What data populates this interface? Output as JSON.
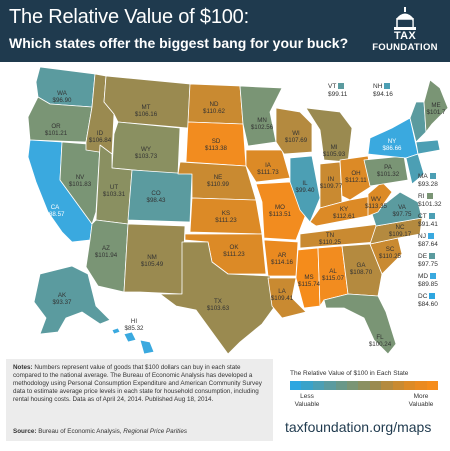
{
  "header": {
    "title": "The Relative Value of $100:",
    "subtitle": "Which states offer the biggest bang for your buck?",
    "logo": {
      "line1": "TAX",
      "line2": "FOUNDATION"
    }
  },
  "colors": {
    "header_bg": "#1f3a4e",
    "less_valuable": "#3aa9df",
    "mid": "#8a8a55",
    "more_valuable": "#f28c1f"
  },
  "states": [
    {
      "abbr": "WA",
      "value": "$96.90"
    },
    {
      "abbr": "OR",
      "value": "$101.21"
    },
    {
      "abbr": "CA",
      "value": "$88.57"
    },
    {
      "abbr": "NV",
      "value": "$101.83"
    },
    {
      "abbr": "ID",
      "value": "$106.84"
    },
    {
      "abbr": "MT",
      "value": "$106.16"
    },
    {
      "abbr": "WY",
      "value": "$103.73"
    },
    {
      "abbr": "UT",
      "value": "$103.31"
    },
    {
      "abbr": "AZ",
      "value": "$101.94"
    },
    {
      "abbr": "CO",
      "value": "$98.43"
    },
    {
      "abbr": "NM",
      "value": "$105.49"
    },
    {
      "abbr": "ND",
      "value": "$110.62"
    },
    {
      "abbr": "SD",
      "value": "$113.38"
    },
    {
      "abbr": "NE",
      "value": "$110.99"
    },
    {
      "abbr": "KS",
      "value": "$111.23"
    },
    {
      "abbr": "OK",
      "value": "$111.23"
    },
    {
      "abbr": "TX",
      "value": "$103.63"
    },
    {
      "abbr": "MN",
      "value": "$102.56"
    },
    {
      "abbr": "IA",
      "value": "$111.73"
    },
    {
      "abbr": "MO",
      "value": "$113.51"
    },
    {
      "abbr": "AR",
      "value": "$114.16"
    },
    {
      "abbr": "LA",
      "value": "$109.41"
    },
    {
      "abbr": "WI",
      "value": "$107.69"
    },
    {
      "abbr": "IL",
      "value": "$99.40"
    },
    {
      "abbr": "MS",
      "value": "$115.74"
    },
    {
      "abbr": "MI",
      "value": "$105.93"
    },
    {
      "abbr": "IN",
      "value": "$109.77"
    },
    {
      "abbr": "OH",
      "value": "$112.11"
    },
    {
      "abbr": "KY",
      "value": "$112.61"
    },
    {
      "abbr": "TN",
      "value": "$110.25"
    },
    {
      "abbr": "AL",
      "value": "$115.07"
    },
    {
      "abbr": "GA",
      "value": "$108.70"
    },
    {
      "abbr": "FL",
      "value": "$100.24"
    },
    {
      "abbr": "SC",
      "value": "$110.25"
    },
    {
      "abbr": "NC",
      "value": "$109.17"
    },
    {
      "abbr": "VA",
      "value": "$97.75"
    },
    {
      "abbr": "WV",
      "value": "$113.35"
    },
    {
      "abbr": "PA",
      "value": "$101.32"
    },
    {
      "abbr": "NY",
      "value": "$86.66"
    },
    {
      "abbr": "ME",
      "value": "$101.7"
    },
    {
      "abbr": "AK",
      "value": "$93.37"
    },
    {
      "abbr": "HI",
      "value": "$85.32"
    }
  ],
  "side_states": [
    {
      "abbr": "VT",
      "value": "$99.11"
    },
    {
      "abbr": "NH",
      "value": "$94.16"
    },
    {
      "abbr": "MA",
      "value": "$93.28"
    },
    {
      "abbr": "RI",
      "value": "$101.32"
    },
    {
      "abbr": "CT",
      "value": "$91.41"
    },
    {
      "abbr": "NJ",
      "value": "$87.64"
    },
    {
      "abbr": "DE",
      "value": "$97.75"
    },
    {
      "abbr": "MD",
      "value": "$89.85"
    },
    {
      "abbr": "DC",
      "value": "$84.60"
    }
  ],
  "notes": {
    "label": "Notes:",
    "text": "Numbers represent value of goods that $100 dollars can buy in each state compared to the national average. The Bureau of Economic Analysis has developed a methodology using Personal Consumption Expenditure and American Community Survey data to estimate average price levels in each state for household consumption, including rental housing costs. Data as of April 24, 2014. Published Aug 18, 2014.",
    "source_label": "Source:",
    "source_text": "Bureau of Economic Analysis,",
    "source_italic": "Regional Price Parities"
  },
  "legend": {
    "title": "The Relative Value of $100 in Each State",
    "less": "Less Valuable",
    "more": "More Valuable",
    "colors": [
      "#2ea6e0",
      "#3aa2c9",
      "#4c9fb4",
      "#5b9b9f",
      "#699889",
      "#7a9575",
      "#8a9061",
      "#9a8a50",
      "#b48a3f",
      "#c98a31",
      "#dc8a26",
      "#ea8a20",
      "#f58c1b"
    ]
  },
  "site": "taxfoundation.org/maps"
}
